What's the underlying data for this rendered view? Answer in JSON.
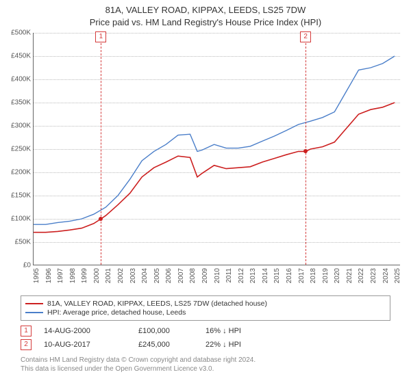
{
  "title_line1": "81A, VALLEY ROAD, KIPPAX, LEEDS, LS25 7DW",
  "title_line2": "Price paid vs. HM Land Registry's House Price Index (HPI)",
  "chart": {
    "type": "line",
    "xlim": [
      1995,
      2025.5
    ],
    "ylim": [
      0,
      500000
    ],
    "ytick_step": 50000,
    "yticks": [
      "£0",
      "£50K",
      "£100K",
      "£150K",
      "£200K",
      "£250K",
      "£300K",
      "£350K",
      "£400K",
      "£450K",
      "£500K"
    ],
    "xticks": [
      1995,
      1996,
      1997,
      1998,
      1999,
      2000,
      2001,
      2002,
      2003,
      2004,
      2005,
      2006,
      2007,
      2008,
      2009,
      2010,
      2011,
      2012,
      2013,
      2014,
      2015,
      2016,
      2017,
      2018,
      2019,
      2020,
      2021,
      2022,
      2023,
      2024,
      2025
    ],
    "background_color": "#ffffff",
    "grid_color": "#bbbbbb",
    "series": [
      {
        "name": "81A, VALLEY ROAD, KIPPAX, LEEDS, LS25 7DW (detached house)",
        "color": "#cc1f1f",
        "line_width": 1.6,
        "data": [
          [
            1995,
            71000
          ],
          [
            1996,
            71000
          ],
          [
            1997,
            73000
          ],
          [
            1998,
            76000
          ],
          [
            1999,
            80000
          ],
          [
            2000,
            90000
          ],
          [
            2000.6,
            100000
          ],
          [
            2001,
            107000
          ],
          [
            2002,
            130000
          ],
          [
            2003,
            155000
          ],
          [
            2004,
            190000
          ],
          [
            2005,
            210000
          ],
          [
            2006,
            222000
          ],
          [
            2007,
            235000
          ],
          [
            2008,
            232000
          ],
          [
            2008.6,
            190000
          ],
          [
            2009,
            198000
          ],
          [
            2010,
            215000
          ],
          [
            2011,
            208000
          ],
          [
            2012,
            210000
          ],
          [
            2013,
            212000
          ],
          [
            2014,
            222000
          ],
          [
            2015,
            230000
          ],
          [
            2016,
            238000
          ],
          [
            2017,
            245000
          ],
          [
            2017.6,
            245000
          ],
          [
            2018,
            250000
          ],
          [
            2019,
            255000
          ],
          [
            2020,
            265000
          ],
          [
            2021,
            295000
          ],
          [
            2022,
            325000
          ],
          [
            2023,
            335000
          ],
          [
            2024,
            340000
          ],
          [
            2025,
            350000
          ]
        ]
      },
      {
        "name": "HPI: Average price, detached house, Leeds",
        "color": "#4a7ec9",
        "line_width": 1.4,
        "data": [
          [
            1995,
            88000
          ],
          [
            1996,
            88000
          ],
          [
            1997,
            92000
          ],
          [
            1998,
            95000
          ],
          [
            1999,
            100000
          ],
          [
            2000,
            110000
          ],
          [
            2001,
            125000
          ],
          [
            2002,
            150000
          ],
          [
            2003,
            185000
          ],
          [
            2004,
            225000
          ],
          [
            2005,
            245000
          ],
          [
            2006,
            260000
          ],
          [
            2007,
            280000
          ],
          [
            2008,
            282000
          ],
          [
            2008.6,
            245000
          ],
          [
            2009,
            248000
          ],
          [
            2010,
            260000
          ],
          [
            2011,
            252000
          ],
          [
            2012,
            252000
          ],
          [
            2013,
            256000
          ],
          [
            2014,
            267000
          ],
          [
            2015,
            278000
          ],
          [
            2016,
            290000
          ],
          [
            2017,
            303000
          ],
          [
            2018,
            310000
          ],
          [
            2019,
            318000
          ],
          [
            2020,
            330000
          ],
          [
            2021,
            375000
          ],
          [
            2022,
            420000
          ],
          [
            2023,
            425000
          ],
          [
            2024,
            434000
          ],
          [
            2025,
            450000
          ]
        ]
      }
    ],
    "markers": [
      {
        "n": "1",
        "x": 2000.6,
        "y": 100000
      },
      {
        "n": "2",
        "x": 2017.6,
        "y": 245000
      }
    ],
    "badge_border": "#d43a3a",
    "sale_dot_color": "#cc1f1f"
  },
  "legend": [
    {
      "color": "#cc1f1f",
      "label": "81A, VALLEY ROAD, KIPPAX, LEEDS, LS25 7DW (detached house)"
    },
    {
      "color": "#4a7ec9",
      "label": "HPI: Average price, detached house, Leeds"
    }
  ],
  "events": [
    {
      "n": "1",
      "date": "14-AUG-2000",
      "price": "£100,000",
      "delta": "16% ↓ HPI"
    },
    {
      "n": "2",
      "date": "10-AUG-2017",
      "price": "£245,000",
      "delta": "22% ↓ HPI"
    }
  ],
  "footer_line1": "Contains HM Land Registry data © Crown copyright and database right 2024.",
  "footer_line2": "This data is licensed under the Open Government Licence v3.0."
}
